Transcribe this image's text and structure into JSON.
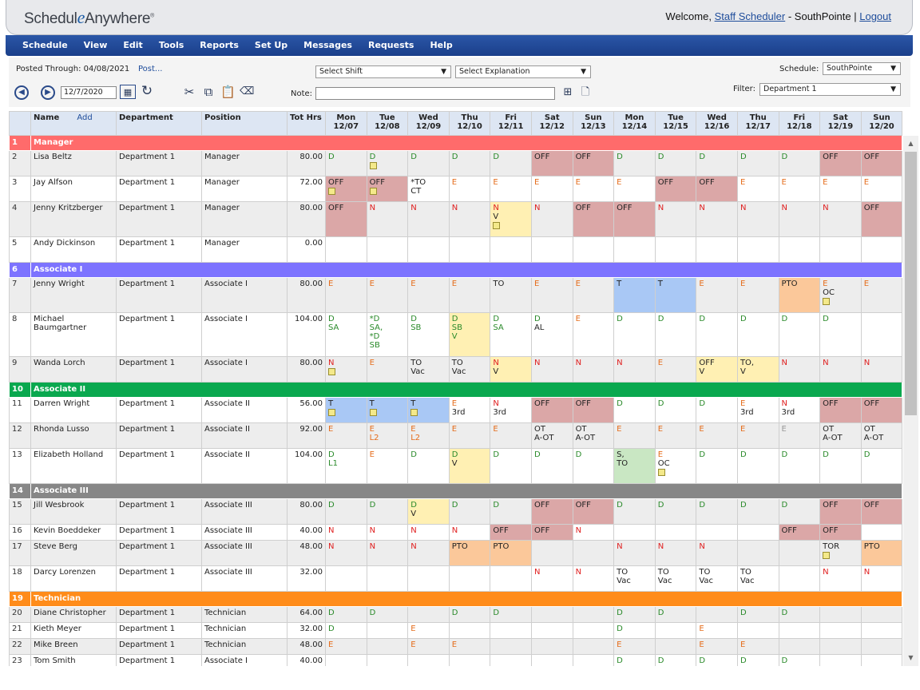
{
  "app": {
    "logo": "ScheduleAnywhere",
    "logo_pre": "Schedul",
    "logo_e": "e",
    "logo_post": "Anywhere",
    "logo_mark": "®",
    "welcome_text": "Welcome, ",
    "user": "Staff Scheduler",
    "site_sep": " - SouthPointe | ",
    "logout": "Logout"
  },
  "nav": [
    "Schedule",
    "View",
    "Edit",
    "Tools",
    "Reports",
    "Set Up",
    "Messages",
    "Requests",
    "Help"
  ],
  "toolbar": {
    "posted_through": "Posted Through: 04/08/2021",
    "post_link": "Post...",
    "select_shift": "Select Shift",
    "select_explanation": "Select Explanation",
    "schedule_label": "Schedule:",
    "schedule_value": "SouthPointe",
    "filter_label": "Filter:",
    "filter_value": "Department 1",
    "date": "12/7/2020",
    "note_label": "Note:"
  },
  "columns": {
    "name": "Name",
    "add": "Add",
    "department": "Department",
    "position": "Position",
    "tot_hrs": "Tot Hrs",
    "days": [
      [
        "Mon",
        "12/07"
      ],
      [
        "Tue",
        "12/08"
      ],
      [
        "Wed",
        "12/09"
      ],
      [
        "Thu",
        "12/10"
      ],
      [
        "Fri",
        "12/11"
      ],
      [
        "Sat",
        "12/12"
      ],
      [
        "Sun",
        "12/13"
      ],
      [
        "Mon",
        "12/14"
      ],
      [
        "Tue",
        "12/15"
      ],
      [
        "Wed",
        "12/16"
      ],
      [
        "Thu",
        "12/17"
      ],
      [
        "Fri",
        "12/18"
      ],
      [
        "Sat",
        "12/19"
      ],
      [
        "Sun",
        "12/20"
      ]
    ]
  },
  "rows": [
    {
      "type": "group",
      "num": "1",
      "label": "Manager",
      "cls": "gmanager"
    },
    {
      "type": "emp",
      "num": "2",
      "name": "Lisa Beltz",
      "dept": "Department 1",
      "pos": "Manager",
      "hrs": "80.00",
      "cells": [
        [
          "D",
          "G"
        ],
        [
          "D",
          "G",
          "",
          "",
          "note"
        ],
        [
          "D",
          "G"
        ],
        [
          "D",
          "G"
        ],
        [
          "D",
          "G"
        ],
        [
          "OFF",
          "K",
          "off"
        ],
        [
          "OFF",
          "K",
          "off"
        ],
        [
          "D",
          "G"
        ],
        [
          "D",
          "G"
        ],
        [
          "D",
          "G"
        ],
        [
          "D",
          "G"
        ],
        [
          "D",
          "G"
        ],
        [
          "OFF",
          "K",
          "off"
        ],
        [
          "OFF",
          "K",
          "off"
        ]
      ]
    },
    {
      "type": "emp",
      "num": "3",
      "name": "Jay Alfson",
      "dept": "Department 1",
      "pos": "Manager",
      "hrs": "72.00",
      "cells": [
        [
          "OFF",
          "K",
          "off",
          "",
          "note"
        ],
        [
          "OFF",
          "K",
          "off",
          "",
          "note"
        ],
        [
          "*TO",
          "K",
          "",
          "CT"
        ],
        [
          "E",
          "O"
        ],
        [
          "E",
          "O"
        ],
        [
          "E",
          "O"
        ],
        [
          "E",
          "O"
        ],
        [
          "E",
          "O"
        ],
        [
          "OFF",
          "K",
          "off"
        ],
        [
          "OFF",
          "K",
          "off"
        ],
        [
          "E",
          "O"
        ],
        [
          "E",
          "O"
        ],
        [
          "E",
          "O"
        ],
        [
          "E",
          "O"
        ]
      ]
    },
    {
      "type": "emp",
      "num": "4",
      "name": "Jenny Kritzberger",
      "dept": "Department 1",
      "pos": "Manager",
      "hrs": "80.00",
      "tall": true,
      "cells": [
        [
          "OFF",
          "K",
          "off"
        ],
        [
          "N",
          "R"
        ],
        [
          "N",
          "R"
        ],
        [
          "N",
          "R"
        ],
        [
          "N",
          "R",
          "yel",
          "V",
          "note"
        ],
        [
          "N",
          "R"
        ],
        [
          "OFF",
          "K",
          "off"
        ],
        [
          "OFF",
          "K",
          "off"
        ],
        [
          "N",
          "R"
        ],
        [
          "N",
          "R"
        ],
        [
          "N",
          "R"
        ],
        [
          "N",
          "R"
        ],
        [
          "N",
          "R"
        ],
        [
          "OFF",
          "K",
          "off"
        ]
      ]
    },
    {
      "type": "emp",
      "num": "5",
      "name": "Andy Dickinson",
      "dept": "Department 1",
      "pos": "Manager",
      "hrs": "0.00",
      "cells": [
        [],
        [],
        [],
        [],
        [],
        [],
        [],
        [],
        [],
        [],
        [],
        [],
        [],
        []
      ]
    },
    {
      "type": "group",
      "num": "6",
      "label": "Associate I",
      "cls": "gassoc1"
    },
    {
      "type": "emp",
      "num": "7",
      "name": "Jenny Wright",
      "dept": "Department 1",
      "pos": "Associate I",
      "hrs": "80.00",
      "tall": true,
      "cells": [
        [
          "E",
          "O"
        ],
        [
          "E",
          "O"
        ],
        [
          "E",
          "O"
        ],
        [
          "E",
          "O"
        ],
        [
          "TO",
          "K"
        ],
        [
          "E",
          "O"
        ],
        [
          "E",
          "O"
        ],
        [
          "T",
          "K",
          "blue"
        ],
        [
          "T",
          "K",
          "blue"
        ],
        [
          "E",
          "O"
        ],
        [
          "E",
          "O"
        ],
        [
          "PTO",
          "K",
          "pto"
        ],
        [
          "E",
          "O",
          "",
          "OC",
          "note"
        ],
        [
          "E",
          "O"
        ]
      ]
    },
    {
      "type": "emp",
      "num": "8",
      "name": "Michael\nBaumgartner",
      "dept": "Department 1",
      "pos": "Associate I",
      "hrs": "104.00",
      "tall2": true,
      "cells": [
        [
          "D",
          "G",
          "",
          "SA"
        ],
        [
          "*D",
          "G",
          "",
          "SA,\n*D\nSB"
        ],
        [
          "D",
          "G",
          "",
          "SB"
        ],
        [
          "D",
          "G",
          "yel",
          "SB\nV"
        ],
        [
          "D",
          "G",
          "",
          "SA"
        ],
        [
          "D",
          "G",
          "",
          "AL"
        ],
        [
          "E",
          "O"
        ],
        [
          "D",
          "G"
        ],
        [
          "D",
          "G"
        ],
        [
          "D",
          "G"
        ],
        [
          "D",
          "G"
        ],
        [
          "D",
          "G"
        ],
        [
          "D",
          "G"
        ],
        []
      ]
    },
    {
      "type": "emp",
      "num": "9",
      "name": "Wanda Lorch",
      "dept": "Department 1",
      "pos": "Associate I",
      "hrs": "80.00",
      "cells": [
        [
          "N",
          "R",
          "",
          "",
          "note"
        ],
        [
          "E",
          "O"
        ],
        [
          "TO",
          "K",
          "",
          "Vac"
        ],
        [
          "TO",
          "K",
          "",
          "Vac"
        ],
        [
          "N",
          "R",
          "yel",
          "V"
        ],
        [
          "N",
          "R"
        ],
        [
          "N",
          "R"
        ],
        [
          "N",
          "R"
        ],
        [
          "E",
          "O"
        ],
        [
          "OFF",
          "K",
          "yel",
          "V"
        ],
        [
          "TO,",
          "K",
          "yel",
          "V"
        ],
        [
          "N",
          "R"
        ],
        [
          "N",
          "R"
        ],
        [
          "N",
          "R"
        ]
      ]
    },
    {
      "type": "group",
      "num": "10",
      "label": "Associate II",
      "cls": "gassoc2"
    },
    {
      "type": "emp",
      "num": "11",
      "name": "Darren Wright",
      "dept": "Department 1",
      "pos": "Associate II",
      "hrs": "56.00",
      "cells": [
        [
          "T",
          "K",
          "blue",
          "",
          "note"
        ],
        [
          "T",
          "K",
          "blue",
          "",
          "note"
        ],
        [
          "T",
          "K",
          "blue",
          "",
          "note"
        ],
        [
          "E",
          "O",
          "",
          "3rd"
        ],
        [
          "N",
          "R",
          "",
          "3rd"
        ],
        [
          "OFF",
          "K",
          "off"
        ],
        [
          "OFF",
          "K",
          "off"
        ],
        [
          "D",
          "G"
        ],
        [
          "D",
          "G"
        ],
        [
          "D",
          "G"
        ],
        [
          "E",
          "O",
          "",
          "3rd"
        ],
        [
          "N",
          "R",
          "",
          "3rd"
        ],
        [
          "OFF",
          "K",
          "off"
        ],
        [
          "OFF",
          "K",
          "off"
        ]
      ]
    },
    {
      "type": "emp",
      "num": "12",
      "name": "Rhonda Lusso",
      "dept": "Department 1",
      "pos": "Associate II",
      "hrs": "92.00",
      "cells": [
        [
          "E",
          "O"
        ],
        [
          "E",
          "O",
          "",
          "L2"
        ],
        [
          "E",
          "O",
          "",
          "L2"
        ],
        [
          "E",
          "O"
        ],
        [
          "E",
          "O"
        ],
        [
          "OT",
          "K",
          "",
          "A-OT"
        ],
        [
          "OT",
          "K",
          "",
          "A-OT"
        ],
        [
          "E",
          "O"
        ],
        [
          "E",
          "O"
        ],
        [
          "E",
          "O"
        ],
        [
          "E",
          "O"
        ],
        [
          "E",
          "Gy"
        ],
        [
          "OT",
          "K",
          "",
          "A-OT"
        ],
        [
          "OT",
          "K",
          "",
          "A-OT"
        ]
      ]
    },
    {
      "type": "emp",
      "num": "13",
      "name": "Elizabeth Holland",
      "dept": "Department 1",
      "pos": "Associate II",
      "hrs": "104.00",
      "tall": true,
      "cells": [
        [
          "D",
          "G",
          "",
          "L1"
        ],
        [
          "E",
          "O"
        ],
        [
          "D",
          "G"
        ],
        [
          "D",
          "G",
          "yel",
          "V"
        ],
        [
          "D",
          "G"
        ],
        [
          "D",
          "G"
        ],
        [
          "D",
          "G"
        ],
        [
          "S,",
          "K",
          "grn",
          "TO"
        ],
        [
          "E",
          "O",
          "",
          "OC",
          "note"
        ],
        [
          "D",
          "G"
        ],
        [
          "D",
          "G"
        ],
        [
          "D",
          "G"
        ],
        [
          "D",
          "G"
        ],
        [
          "D",
          "G"
        ]
      ]
    },
    {
      "type": "group",
      "num": "14",
      "label": "Associate III",
      "cls": "gassoc3"
    },
    {
      "type": "emp",
      "num": "15",
      "name": "Jill Wesbrook",
      "dept": "Department 1",
      "pos": "Associate III",
      "hrs": "80.00",
      "cells": [
        [
          "D",
          "G"
        ],
        [
          "D",
          "G"
        ],
        [
          "D",
          "G",
          "yel",
          "V"
        ],
        [
          "D",
          "G"
        ],
        [
          "D",
          "G"
        ],
        [
          "OFF",
          "K",
          "off"
        ],
        [
          "OFF",
          "K",
          "off"
        ],
        [
          "D",
          "G"
        ],
        [
          "D",
          "G"
        ],
        [
          "D",
          "G"
        ],
        [
          "D",
          "G"
        ],
        [
          "D",
          "G"
        ],
        [
          "OFF",
          "K",
          "off"
        ],
        [
          "OFF",
          "K",
          "off"
        ]
      ]
    },
    {
      "type": "emp",
      "num": "16",
      "name": "Kevin Boeddeker",
      "dept": "Department 1",
      "pos": "Associate III",
      "hrs": "40.00",
      "short": true,
      "cells": [
        [
          "N",
          "R"
        ],
        [
          "N",
          "R"
        ],
        [
          "N",
          "R"
        ],
        [
          "N",
          "R"
        ],
        [
          "OFF",
          "K",
          "off"
        ],
        [
          "OFF",
          "K",
          "off"
        ],
        [
          "N",
          "R"
        ],
        [],
        [],
        [],
        [],
        [
          "OFF",
          "K",
          "off"
        ],
        [
          "OFF",
          "K",
          "off"
        ],
        []
      ]
    },
    {
      "type": "emp",
      "num": "17",
      "name": "Steve Berg",
      "dept": "Department 1",
      "pos": "Associate III",
      "hrs": "48.00",
      "cells": [
        [
          "N",
          "R"
        ],
        [
          "N",
          "R"
        ],
        [
          "N",
          "R"
        ],
        [
          "PTO",
          "K",
          "pto"
        ],
        [
          "PTO",
          "K",
          "pto"
        ],
        [],
        [],
        [
          "N",
          "R"
        ],
        [
          "N",
          "R"
        ],
        [
          "N",
          "R"
        ],
        [],
        [],
        [
          "TOR",
          "K",
          "",
          "",
          "note"
        ],
        [
          "PTO",
          "K",
          "pto"
        ]
      ]
    },
    {
      "type": "emp",
      "num": "18",
      "name": "Darcy Lorenzen",
      "dept": "Department 1",
      "pos": "Associate III",
      "hrs": "32.00",
      "cells": [
        [],
        [],
        [],
        [],
        [],
        [
          "N",
          "R"
        ],
        [
          "N",
          "R"
        ],
        [
          "TO",
          "K",
          "",
          "Vac"
        ],
        [
          "TO",
          "K",
          "",
          "Vac"
        ],
        [
          "TO",
          "K",
          "",
          "Vac"
        ],
        [
          "TO",
          "K",
          "",
          "Vac"
        ],
        [],
        [
          "N",
          "R"
        ],
        [
          "N",
          "R"
        ]
      ]
    },
    {
      "type": "group",
      "num": "19",
      "label": "Technician",
      "cls": "gtech"
    },
    {
      "type": "emp",
      "num": "20",
      "name": "Diane Christopher",
      "dept": "Department 1",
      "pos": "Technician",
      "hrs": "64.00",
      "short": true,
      "cells": [
        [
          "D",
          "G"
        ],
        [
          "D",
          "G"
        ],
        [],
        [
          "D",
          "G"
        ],
        [
          "D",
          "G"
        ],
        [],
        [],
        [
          "D",
          "G"
        ],
        [
          "D",
          "G"
        ],
        [],
        [
          "D",
          "G"
        ],
        [
          "D",
          "G"
        ],
        [],
        []
      ]
    },
    {
      "type": "emp",
      "num": "21",
      "name": "Kieth Meyer",
      "dept": "Department 1",
      "pos": "Technician",
      "hrs": "32.00",
      "short": true,
      "cells": [
        [
          "D",
          "G"
        ],
        [],
        [
          "E",
          "O"
        ],
        [],
        [],
        [],
        [],
        [
          "D",
          "G"
        ],
        [],
        [
          "E",
          "O"
        ],
        [],
        [],
        [],
        []
      ]
    },
    {
      "type": "emp",
      "num": "22",
      "name": "Mike Breen",
      "dept": "Department 1",
      "pos": "Technician",
      "hrs": "48.00",
      "short": true,
      "cells": [
        [
          "E",
          "O"
        ],
        [],
        [
          "E",
          "O"
        ],
        [
          "E",
          "O"
        ],
        [],
        [],
        [],
        [
          "E",
          "O"
        ],
        [],
        [
          "E",
          "O"
        ],
        [
          "E",
          "O"
        ],
        [],
        [],
        []
      ]
    },
    {
      "type": "emp",
      "num": "23",
      "name": "Tom Smith",
      "dept": "Department 1",
      "pos": "Associate I",
      "hrs": "40.00",
      "short": true,
      "cells": [
        [],
        [],
        [],
        [],
        [],
        [],
        [],
        [
          "D",
          "G"
        ],
        [
          "D",
          "G"
        ],
        [
          "D",
          "G"
        ],
        [
          "D",
          "G"
        ],
        [
          "D",
          "G"
        ],
        [],
        []
      ]
    }
  ]
}
